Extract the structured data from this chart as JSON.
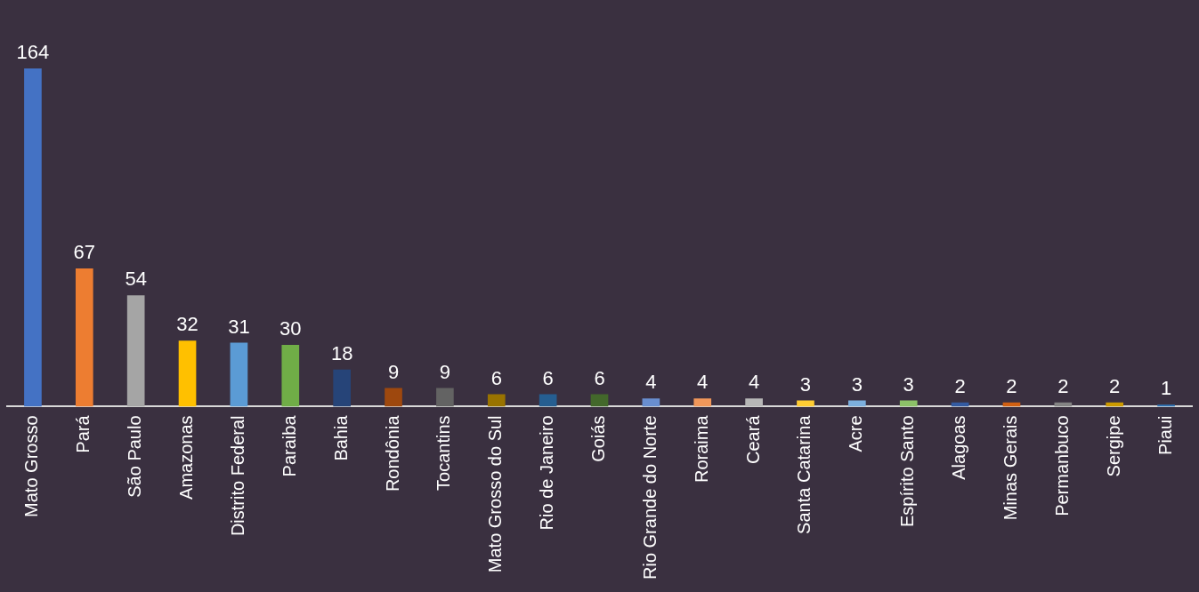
{
  "chart_data": {
    "type": "bar",
    "categories": [
      "Mato Grosso",
      "Pará",
      "São Paulo",
      "Amazonas",
      "Distrito Federal",
      "Paraiba",
      "Bahia",
      "Rondônia",
      "Tocantins",
      "Mato Grosso do Sul",
      "Rio de Janeiro",
      "Goiás",
      "Rio Grande do Norte",
      "Roraima",
      "Ceará",
      "Santa Catarina",
      "Acre",
      "Espírito Santo",
      "Alagoas",
      "Minas Gerais",
      "Permanbuco",
      "Sergipe",
      "Piaui"
    ],
    "values": [
      164,
      67,
      54,
      32,
      31,
      30,
      18,
      9,
      9,
      6,
      6,
      6,
      4,
      4,
      4,
      3,
      3,
      3,
      2,
      2,
      2,
      2,
      1
    ],
    "colors": [
      "#4472c4",
      "#ed7d31",
      "#a5a5a5",
      "#ffc000",
      "#5b9bd5",
      "#70ad47",
      "#264478",
      "#9e480e",
      "#636363",
      "#997300",
      "#255e91",
      "#43682b",
      "#698ed0",
      "#f1975a",
      "#b7b7b7",
      "#ffcd33",
      "#7cafdd",
      "#8cc168",
      "#335aa1",
      "#d26012",
      "#848484",
      "#cc9a00",
      "#2e75b6"
    ],
    "data_labels": true,
    "grid": false,
    "legend": false,
    "tick_labels": "x"
  }
}
